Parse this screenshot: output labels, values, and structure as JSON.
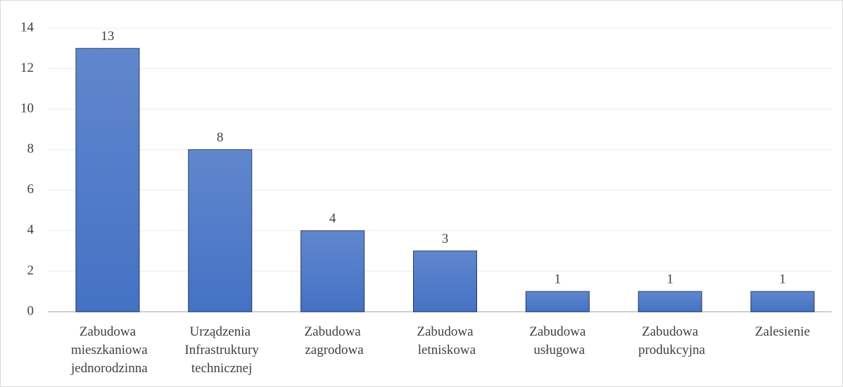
{
  "chart_data": {
    "type": "bar",
    "categories": [
      "Zabudowa mieszkaniowa jednorodzinna",
      "Urządzenia Infrastruktury technicznej",
      "Zabudowa zagrodowa",
      "Zabudowa letniskowa",
      "Zabudowa usługowa",
      "Zabudowa produkcyjna",
      "Zalesienie"
    ],
    "values": [
      13,
      8,
      4,
      3,
      1,
      1,
      1
    ],
    "color": "#4472c4",
    "ylim": [
      0,
      14
    ],
    "yticks": [
      0,
      2,
      4,
      6,
      8,
      10,
      12,
      14
    ],
    "grid": true
  }
}
